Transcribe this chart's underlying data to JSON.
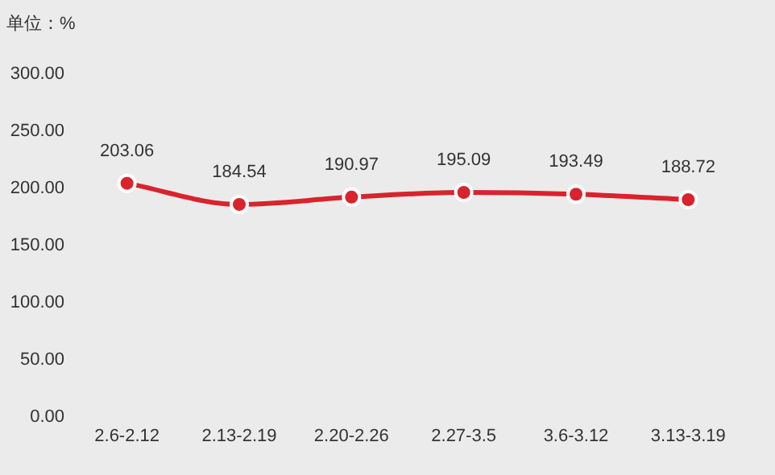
{
  "chart_data": {
    "type": "line",
    "ylabel": "单位：%",
    "categories": [
      "2.6-2.12",
      "2.13-2.19",
      "2.20-2.26",
      "2.27-3.5",
      "3.6-3.12",
      "3.13-3.19"
    ],
    "series": [
      {
        "color": "#d9232d",
        "values": [
          203.06,
          184.54,
          190.97,
          195.09,
          193.49,
          188.72
        ]
      }
    ],
    "ylim": [
      0,
      300
    ],
    "yticks": [
      {
        "value": 0,
        "label": "0.00"
      },
      {
        "value": 50,
        "label": "50.00"
      },
      {
        "value": 100,
        "label": "100.00"
      },
      {
        "value": 150,
        "label": "150.00"
      },
      {
        "value": 200,
        "label": "200.00"
      },
      {
        "value": 250,
        "label": "250.00"
      },
      {
        "value": 300,
        "label": "300.00"
      }
    ],
    "data_labels": true,
    "marker": "circle",
    "line_style": "solid"
  }
}
